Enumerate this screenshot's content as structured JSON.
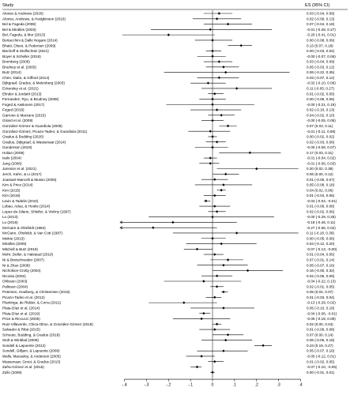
{
  "chart_data": {
    "type": "forest",
    "headers": {
      "study": "Study",
      "es": "ES (95% CI)"
    },
    "xticks": [
      -0.4,
      -0.3,
      -0.2,
      -0.1,
      0,
      0.1,
      0.2,
      0.3,
      0.4
    ],
    "xtick_labels": [
      "-.4",
      "-.3",
      "-.2",
      "-.1",
      "0",
      ".1",
      ".2",
      ".3",
      ".4"
    ],
    "xlim": [
      -0.42,
      0.42
    ],
    "reference_line": 0,
    "rows": [
      {
        "study": "Alonso & Andrews (2020)",
        "es": 0.03,
        "lo": -0.04,
        "hi": 0.09,
        "label": "0.03 (-0.04, 0.09)"
      },
      {
        "study": "Alonso, Andrews, & Hodgkinson (2016)",
        "es": 0.02,
        "lo": -0.09,
        "hi": 0.13,
        "label": "0.02 (-0.09, 0.13)"
      },
      {
        "study": "Bel & Fageda (2008)",
        "es": 0.07,
        "lo": -0.04,
        "hi": 0.18,
        "label": "0.07 (-0.04, 0.18)"
      },
      {
        "study": "Bel & Miralles (2003)",
        "es": -0.01,
        "lo": -0.28,
        "hi": 0.27,
        "label": "-0.01 (-0.28, 0.27)"
      },
      {
        "study": "Bel, Fageda, & Mur (2013)",
        "es": -0.2,
        "lo": -0.41,
        "hi": 0.01,
        "label": "-0.20 (-0.41, 0.01)"
      },
      {
        "study": "Bertacchini & Dalle Nogare (2014)",
        "es": 0.0,
        "lo": -0.08,
        "hi": 0.09,
        "label": "0.00 (-0.08, 0.09)"
      },
      {
        "study": "Bhatti, Olsen, & Pedersen (2009)",
        "es": 0.13,
        "lo": 0.07,
        "hi": 0.18,
        "label": "0.13 (0.07, 0.18)"
      },
      {
        "study": "Bischoff & Wolfschütz (2021)",
        "es": 0.0,
        "lo": -0.03,
        "hi": 0.04,
        "label": "0.00 (-0.03, 0.04)"
      },
      {
        "study": "Boyer & Scheller (2018)",
        "es": -0.0,
        "lo": -0.07,
        "hi": 0.06,
        "label": "-0.00 (-0.07, 0.06)"
      },
      {
        "study": "Bromberg (2009)",
        "es": 0.03,
        "lo": -0.04,
        "hi": 0.09,
        "label": "0.03 (-0.04, 0.09)"
      },
      {
        "study": "Brudney et al. (2005)",
        "es": 0.05,
        "lo": -0.03,
        "hi": 0.12,
        "label": "0.05 (-0.03, 0.12)"
      },
      {
        "study": "Butz (2014)",
        "es": 0.06,
        "lo": -0.22,
        "hi": 0.35,
        "label": "0.06 (-0.22, 0.35)"
      },
      {
        "study": "Chen, Dalto, & Gifford (2014)",
        "es": 0.03,
        "lo": -0.07,
        "hi": 0.12,
        "label": "0.03 (-0.07, 0.12)"
      },
      {
        "study": "Dijkgraaf, Gradus, & Melenberg (2003)",
        "es": -0.02,
        "lo": -0.1,
        "hi": 0.06,
        "label": "-0.02 (-0.10, 0.06)"
      },
      {
        "study": "Eckersley et al. (2021)",
        "es": 0.11,
        "lo": -0.05,
        "hi": 0.27,
        "label": "0.11 (-0.05, 0.27)"
      },
      {
        "study": "Elinder & Jordahl (2013)",
        "es": 0.01,
        "lo": -0.02,
        "hi": 0.05,
        "label": "0.01 (-0.02, 0.05)"
      },
      {
        "study": "Fernandez, Ryu, & Brudney (2008)",
        "es": 0.0,
        "lo": -0.06,
        "hi": 0.06,
        "label": "0.00 (-0.06, 0.06)"
      },
      {
        "study": "Foged & Aaskoven (2017)",
        "es": -0.0,
        "lo": -0.21,
        "hi": 0.19,
        "label": "-0.00 (-0.21, 0.19)"
      },
      {
        "study": "Foged (2016)",
        "es": 0.02,
        "lo": -0.1,
        "hi": 0.13,
        "label": "0.02 (-0.10, 0.13)"
      },
      {
        "study": "Garrone & Marzano (2015)",
        "es": 0.04,
        "lo": -0.02,
        "hi": 0.1,
        "label": "0.04 (-0.02, 0.10)"
      },
      {
        "study": "Girard et al. (2009)",
        "es": -0.0,
        "lo": -0.05,
        "hi": 0.05,
        "label": "-0.00 (-0.05, 0.05)"
      },
      {
        "study": "González-Gómez & Guardiola (2009)",
        "es": 0.07,
        "lo": 0.03,
        "hi": 0.11,
        "label": "0.07 (0.03, 0.11)"
      },
      {
        "study": "González-Gómez, Picazo-Tadeo, & Guardiola (2011)",
        "es": -0.01,
        "lo": -0.11,
        "hi": 0.08,
        "label": "-0.01 (-0.11, 0.08)"
      },
      {
        "study": "Gradus & Budding (2020)",
        "es": 0.0,
        "lo": -0.02,
        "hi": 0.02,
        "label": "0.00 (-0.02, 0.02)"
      },
      {
        "study": "Gradus, Dijkgraaf, & Wassenaar (2014)",
        "es": 0.02,
        "lo": -0.03,
        "hi": 0.06,
        "label": "0.02 (-0.03, 0.06)"
      },
      {
        "study": "Gunderson (2019)",
        "es": -0.0,
        "lo": -0.08,
        "hi": 0.07,
        "label": "-0.00 (-0.08, 0.07)"
      },
      {
        "study": "Holian (2009)",
        "es": 0.17,
        "lo": 0.03,
        "hi": 0.31,
        "label": "0.17 (0.03, 0.31)"
      },
      {
        "study": "Iseki (2004)",
        "es": -0.01,
        "lo": -0.04,
        "hi": 0.02,
        "label": "-0.01 (-0.04, 0.02)"
      },
      {
        "study": "Jang (2006)",
        "es": -0.01,
        "lo": -0.06,
        "hi": 0.03,
        "label": "-0.01 (-0.06, 0.03)"
      },
      {
        "study": "Jansson et al. (2021)",
        "es": 0.2,
        "lo": 0.02,
        "hi": 0.39,
        "label": "0.20 (0.02, 0.39)"
      },
      {
        "study": "Jerch, Kahn, & Li (2017)",
        "es": 0.06,
        "lo": 0.0,
        "hi": 0.12,
        "label": "0.06 (0.00, 0.12)"
      },
      {
        "study": "Joassart-Marcelli & Musso (2005)",
        "es": 0.01,
        "lo": -0.05,
        "hi": 0.07,
        "label": "0.01 (-0.05, 0.07)"
      },
      {
        "study": "Kim & Price (2014)",
        "es": 0.05,
        "lo": -0.08,
        "hi": 0.18,
        "label": "0.05 (-0.08, 0.18)"
      },
      {
        "study": "Kim (2015)",
        "es": 0.04,
        "lo": 0.02,
        "hi": 0.06,
        "label": "0.04 (0.02, 0.06)"
      },
      {
        "study": "Kim (2019)",
        "es": 0.01,
        "lo": -0.04,
        "hi": 0.06,
        "label": "0.01 (-0.04, 0.06)"
      },
      {
        "study": "Levin & Tadelis (2010)",
        "es": -0.03,
        "lo": -0.04,
        "hi": -0.01,
        "label": "-0.03 (-0.04, -0.01)"
      },
      {
        "study": "Lobao, Adua, & Hooks (2014)",
        "es": 0.01,
        "lo": -0.06,
        "hi": 0.08,
        "label": "0.01 (-0.06, 0.08)"
      },
      {
        "study": "Lopez-de-Silane, Shleifer, & Vishny (1997)",
        "es": 0.02,
        "lo": -0.02,
        "hi": 0.06,
        "label": "0.02 (-0.02, 0.06)"
      },
      {
        "study": "Lu (2013)",
        "es": -0.0,
        "lo": -0.29,
        "hi": 0.28,
        "label": "-0.00 (-0.29, 0.28)"
      },
      {
        "study": "Lu (2016)",
        "es": -0.18,
        "lo": -0.46,
        "hi": 0.11,
        "label": "-0.18 (-0.46, 0.11)"
      },
      {
        "study": "McGuire & Ohsfeldt (1994)",
        "es": -0.27,
        "lo": -0.55,
        "hi": 0.02,
        "label": "-0.27 (-0.55, 0.02)"
      },
      {
        "study": "McGuire, Ohsfeldt, & Van Cott (1987)",
        "es": 0.11,
        "lo": -0.18,
        "hi": 0.39,
        "label": "0.11 (-0.18, 0.39)"
      },
      {
        "study": "Meikie (2013)",
        "es": 0.0,
        "lo": -0.05,
        "hi": 0.06,
        "label": "0.00 (-0.05, 0.06)"
      },
      {
        "study": "Miralles (2009)",
        "es": 0.04,
        "lo": -0.12,
        "hi": 0.2,
        "label": "0.04 (-0.12, 0.20)"
      },
      {
        "study": "Mitchell & Butz (2019)",
        "es": -0.07,
        "lo": -0.13,
        "hi": -0.0,
        "label": "-0.07 (-0.13, -0.00)"
      },
      {
        "study": "Mohr, Deller, & Halstead (2010)",
        "es": 0.01,
        "lo": -0.04,
        "hi": 0.05,
        "label": "0.01 (-0.04, 0.05)"
      },
      {
        "study": "Ni & Bretschneider (2007)",
        "es": 0.07,
        "lo": -0.01,
        "hi": 0.14,
        "label": "0.07 (-0.01, 0.14)"
      },
      {
        "study": "Ni & Zhao (2008)",
        "es": 0.05,
        "lo": -0.07,
        "hi": 0.16,
        "label": "0.05 (-0.07, 0.16)"
      },
      {
        "study": "Nicholson-Crotty (2004)",
        "es": 0.16,
        "lo": -0.0,
        "hi": 0.32,
        "label": "0.16 (-0.00, 0.32)"
      },
      {
        "study": "Nicosia (2002)",
        "es": 0.02,
        "lo": -0.05,
        "hi": 0.09,
        "label": "0.02 (-0.05, 0.09)"
      },
      {
        "study": "Ohlsson (2003)",
        "es": -0.04,
        "lo": -0.22,
        "hi": 0.13,
        "label": "-0.04 (-0.22, 0.13)"
      },
      {
        "study": "Pallesen (2004)",
        "es": 0.02,
        "lo": -0.01,
        "hi": 0.05,
        "label": "0.02 (-0.01, 0.05)"
      },
      {
        "study": "Petersen, Houlberg, & Christensen (2015)",
        "es": 0.05,
        "lo": 0.04,
        "hi": 0.07,
        "label": "0.05 (0.04, 0.07)"
      },
      {
        "study": "Picazo-Tadeo et al. (2012)",
        "es": 0.01,
        "lo": -0.03,
        "hi": 0.04,
        "label": "0.01 (-0.03, 0.04)"
      },
      {
        "study": "Plantinga, de Ridder, & Corra (2011)",
        "es": -0.13,
        "lo": -0.29,
        "hi": 0.02,
        "label": "-0.13 (-0.29, 0.02)"
      },
      {
        "study": "Plata-Díaz et al. (2014)",
        "es": 0.05,
        "lo": -0.1,
        "hi": 0.19,
        "label": "0.05 (-0.10, 0.19)"
      },
      {
        "study": "Plata-Díaz et al. (2019)",
        "es": -0.04,
        "lo": -0.06,
        "hi": -0.01,
        "label": "-0.04 (-0.06, -0.01)"
      },
      {
        "study": "Price & Riccucci (2005)",
        "es": -0.05,
        "lo": -0.18,
        "hi": 0.08,
        "label": "-0.05 (-0.18, 0.08)"
      },
      {
        "study": "Ruiz-Villaverde, Chica-Olmo, & González-Gómez (2018)",
        "es": 0.02,
        "lo": 0.0,
        "hi": 0.04,
        "label": "0.02 (0.00, 0.04)"
      },
      {
        "study": "Salvador & Ribá (2015)",
        "es": 0.01,
        "lo": -0.06,
        "hi": 0.08,
        "label": "0.01 (-0.06, 0.08)"
      },
      {
        "study": "Schoute, Budding, & Gradus (2018)",
        "es": 0.07,
        "lo": 0.0,
        "hi": 0.14,
        "label": "0.07 (0.00, 0.14)"
      },
      {
        "study": "Stolt & Winblad (2009)",
        "es": 0.06,
        "lo": -0.05,
        "hi": 0.18,
        "label": "0.06 (-0.05, 0.18)"
      },
      {
        "study": "Sundell & Lapuente (2012)",
        "es": 0.23,
        "lo": 0.19,
        "hi": 0.27,
        "label": "0.23 (0.19, 0.27)"
      },
      {
        "study": "Sundell, Gilljam, & Lapuente (2009)",
        "es": 0.05,
        "lo": -0.07,
        "hi": 0.16,
        "label": "0.05 (-0.07, 0.16)"
      },
      {
        "study": "Walls, Macauley, & Anderson (2005)",
        "es": -0.05,
        "lo": -0.12,
        "hi": 0.01,
        "label": "-0.05 (-0.12, 0.01)"
      },
      {
        "study": "Wassenaar, Groot, & Gradus (2013)",
        "es": 0.01,
        "lo": -0.02,
        "hi": 0.05,
        "label": "0.01 (-0.02, 0.05)"
      },
      {
        "study": "Zafra-Gómez et al. (2016)",
        "es": -0.07,
        "lo": -0.1,
        "hi": -0.05,
        "label": "-0.07 (-0.10, -0.05)"
      },
      {
        "study": "Zullo (2009)",
        "es": 0.0,
        "lo": -0.01,
        "hi": 0.01,
        "label": "0.00 (-0.01, 0.01)"
      }
    ]
  }
}
